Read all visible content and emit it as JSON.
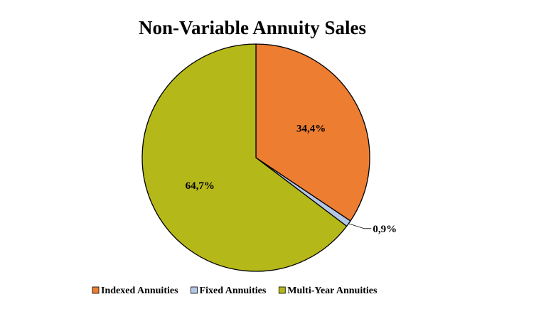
{
  "chart_data": {
    "type": "pie",
    "title": "Non-Variable Annuity Sales",
    "slices": [
      {
        "name": "Indexed Annuities",
        "value": 34.4,
        "label": "34,4%",
        "color": "#ED7D31"
      },
      {
        "name": "Fixed Annuities",
        "value": 0.9,
        "label": "0,9%",
        "color": "#B4C7E7"
      },
      {
        "name": "Multi-Year Annuities",
        "value": 64.7,
        "label": "64,7%",
        "color": "#B5B819"
      }
    ],
    "start_angle": "12 o'clock",
    "direction": "clockwise",
    "legend_position": "bottom"
  }
}
